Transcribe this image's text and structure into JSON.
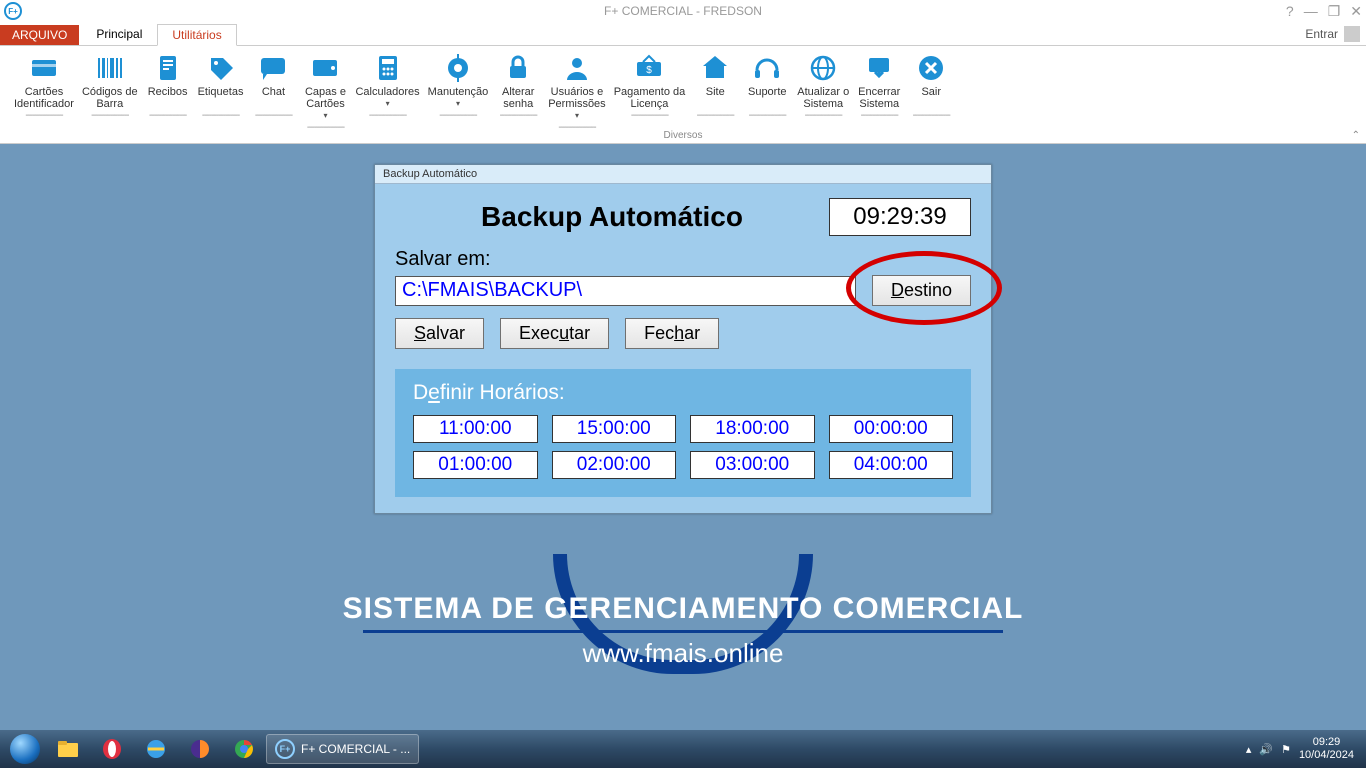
{
  "colors": {
    "accent": "#1e90d4",
    "file_tab": "#c93c20",
    "workspace_bg": "#6f98bb",
    "dialog_bg": "#a0ccec",
    "sched_bg": "#6fb6e3",
    "highlight_ring": "#d40000",
    "link_blue": "#0000ff",
    "brand_navy": "#0b3e91"
  },
  "window": {
    "title": "F+ COMERCIAL - FREDSON",
    "help_icon": "?",
    "min_icon": "—",
    "restore_icon": "❐",
    "close_icon": "✕"
  },
  "tabs": {
    "file": "ARQUIVO",
    "items": [
      "Principal",
      "Utilitários"
    ],
    "active_index": 1,
    "right_label": "Entrar"
  },
  "ribbon": {
    "group_label": "Diversos",
    "dashes": "----------------",
    "items": [
      {
        "name": "cartoes-identificador",
        "label": "Cartões Identificador",
        "icon": "card"
      },
      {
        "name": "codigos-de-barra",
        "label": "Códigos de Barra",
        "icon": "barcode"
      },
      {
        "name": "recibos",
        "label": "Recibos",
        "icon": "receipt"
      },
      {
        "name": "etiquetas",
        "label": "Etiquetas",
        "icon": "tags"
      },
      {
        "name": "chat",
        "label": "Chat",
        "icon": "chat"
      },
      {
        "name": "capas-e-cartoes",
        "label": "Capas e Cartões",
        "icon": "wallet",
        "dropdown": true
      },
      {
        "name": "calculadores",
        "label": "Calculadores",
        "icon": "calc",
        "dropdown": true
      },
      {
        "name": "manutencao",
        "label": "Manutenção",
        "icon": "wrench",
        "dropdown": true
      },
      {
        "name": "alterar-senha",
        "label": "Alterar senha",
        "icon": "lock"
      },
      {
        "name": "usuarios-e-permissoes",
        "label": "Usuários e Permissões",
        "icon": "user",
        "dropdown": true
      },
      {
        "name": "pagamento-da-licenca",
        "label": "Pagamento da Licença",
        "icon": "payment"
      },
      {
        "name": "site",
        "label": "Site",
        "icon": "home"
      },
      {
        "name": "suporte",
        "label": "Suporte",
        "icon": "headset"
      },
      {
        "name": "atualizar-o-sistema",
        "label": "Atualizar o Sistema",
        "icon": "globe"
      },
      {
        "name": "encerrar-sistema",
        "label": "Encerrar Sistema",
        "icon": "download"
      },
      {
        "name": "sair",
        "label": "Sair",
        "icon": "xcircle"
      }
    ]
  },
  "workspace": {
    "brand_title": "SISTEMA DE GERENCIAMENTO COMERCIAL",
    "brand_url": "www.fmais.online"
  },
  "dialog": {
    "titlebar": "Backup Automático",
    "heading": "Backup Automático",
    "clock": "09:29:39",
    "save_in_label": "Salvar em:",
    "path_value": "C:\\FMAIS\\BACKUP\\",
    "buttons": {
      "destino": "Destino",
      "salvar": "Salvar",
      "executar": "Executar",
      "fechar": "Fechar"
    },
    "schedule": {
      "title_prefix": "D",
      "title_ul": "e",
      "title_suffix": "finir Horários:",
      "times": [
        "11:00:00",
        "15:00:00",
        "18:00:00",
        "00:00:00",
        "01:00:00",
        "02:00:00",
        "03:00:00",
        "04:00:00"
      ]
    }
  },
  "taskbar": {
    "task_label": "F+ COMERCIAL - ...",
    "clock_time": "09:29",
    "clock_date": "10/04/2024"
  }
}
